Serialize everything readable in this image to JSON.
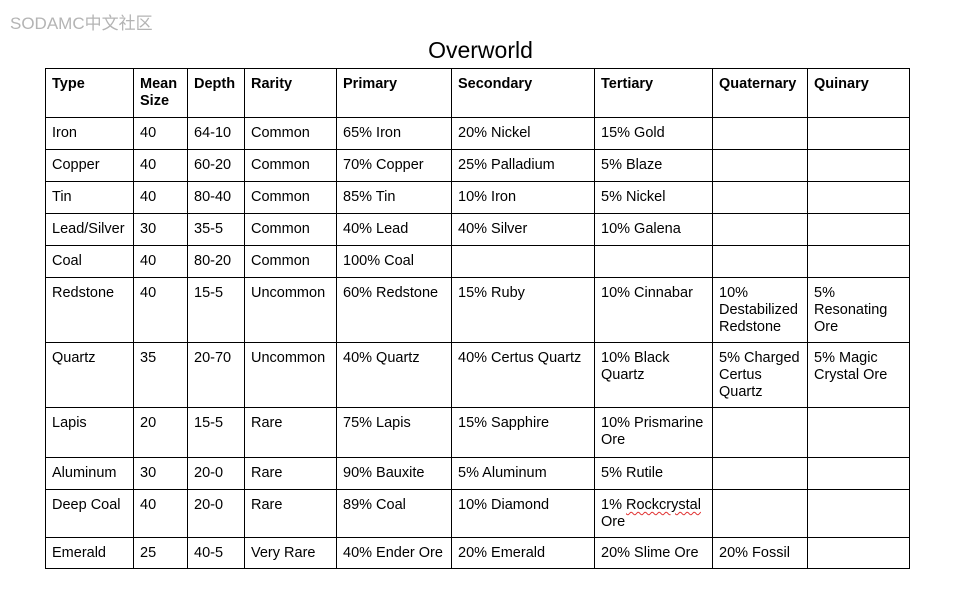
{
  "watermark": "SODAMC中文社区",
  "title": "Overworld",
  "table": {
    "headers": [
      "Type",
      "Mean Size",
      "Depth",
      "Rarity",
      "Primary",
      "Secondary",
      "Tertiary",
      "Quaternary",
      "Quinary"
    ],
    "rows": [
      [
        "Iron",
        "40",
        "64-10",
        "Common",
        "65% Iron",
        "20% Nickel",
        "15% Gold",
        "",
        ""
      ],
      [
        "Copper",
        "40",
        "60-20",
        "Common",
        "70% Copper",
        "25% Palladium",
        "5% Blaze",
        "",
        ""
      ],
      [
        "Tin",
        "40",
        "80-40",
        "Common",
        "85% Tin",
        "10% Iron",
        "5% Nickel",
        "",
        ""
      ],
      [
        "Lead/Silver",
        "30",
        "35-5",
        "Common",
        "40% Lead",
        "40% Silver",
        "10% Galena",
        "",
        ""
      ],
      [
        "Coal",
        "40",
        "80-20",
        "Common",
        "100% Coal",
        "",
        "",
        "",
        ""
      ],
      [
        "Redstone",
        "40",
        "15-5",
        "Uncommon",
        "60% Redstone",
        "15% Ruby",
        "10% Cinnabar",
        "10% Destabilized Redstone",
        "5% Resonating Ore"
      ],
      [
        "Quartz",
        "35",
        "20-70",
        "Uncommon",
        "40% Quartz",
        "40% Certus Quartz",
        "10% Black Quartz",
        "5% Charged Certus Quartz",
        "5% Magic Crystal Ore"
      ],
      [
        "Lapis",
        "20",
        "15-5",
        "Rare",
        "75% Lapis",
        "15% Sapphire",
        "10% Prismarine Ore",
        "",
        ""
      ],
      [
        "Aluminum",
        "30",
        "20-0",
        "Rare",
        "90% Bauxite",
        "5% Aluminum",
        "5% Rutile",
        "",
        ""
      ],
      [
        "Deep Coal",
        "40",
        "20-0",
        "Rare",
        "89% Coal",
        "10% Diamond",
        "1% Rockcrystal Ore",
        "",
        ""
      ],
      [
        "Emerald",
        "25",
        "40-5",
        "Very Rare",
        "40% Ender Ore",
        "20% Emerald",
        "20% Slime Ore",
        "20% Fossil",
        ""
      ]
    ]
  }
}
